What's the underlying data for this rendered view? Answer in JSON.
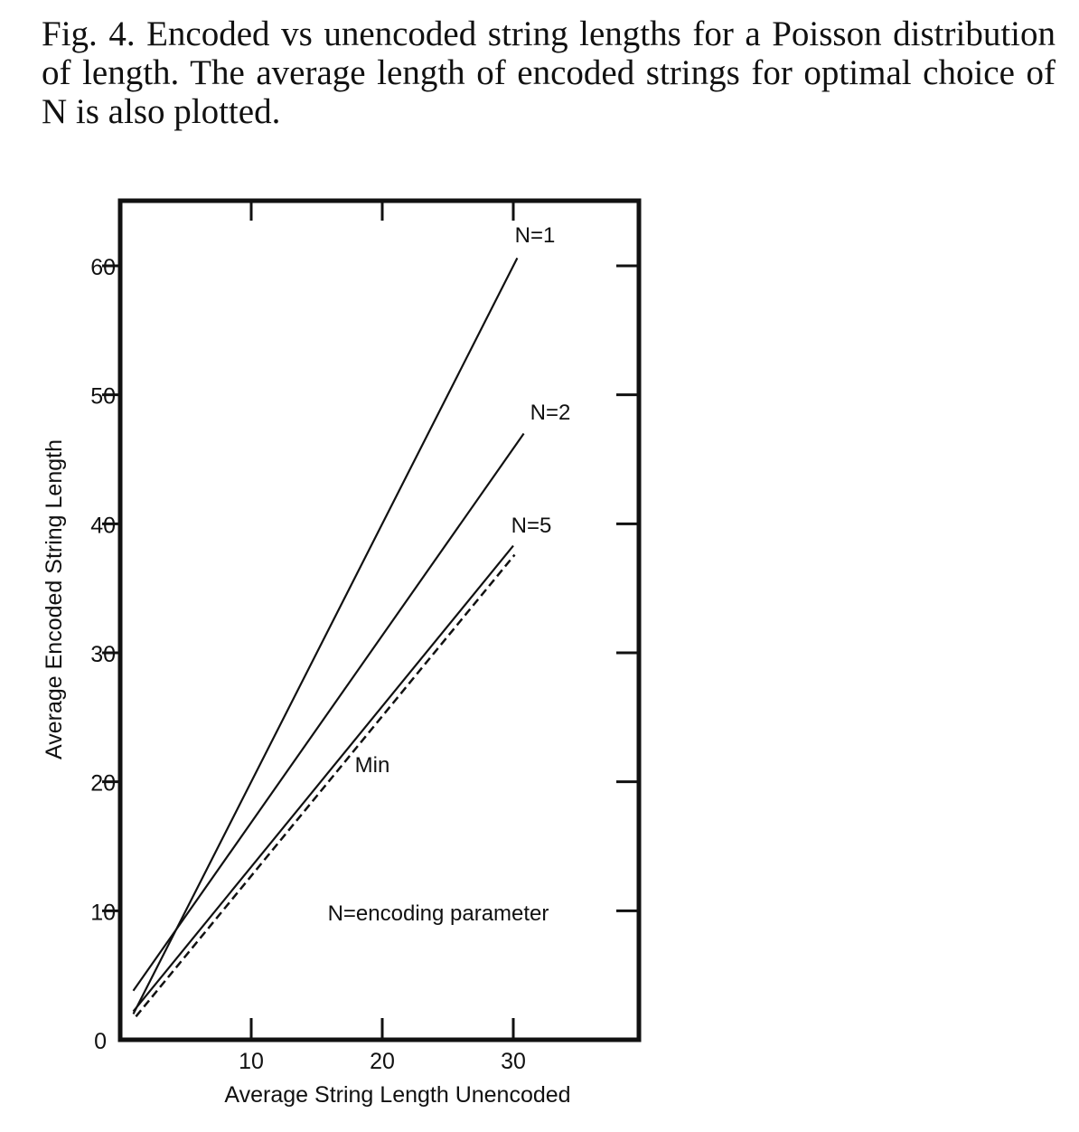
{
  "caption": {
    "text": "Fig. 4. Encoded vs unencoded string lengths for a Poisson distribution of length. The average length of encoded strings for optimal choice of N is also plotted."
  },
  "chart_data": {
    "type": "line",
    "xlabel": "Average String Length Unencoded",
    "ylabel": "Average Encoded String Length",
    "xlim": [
      0,
      40
    ],
    "ylim": [
      0,
      65
    ],
    "x_ticks": [
      10,
      20,
      30
    ],
    "y_ticks": [
      0,
      10,
      20,
      30,
      40,
      50,
      60
    ],
    "grid": false,
    "series": [
      {
        "name": "N=1",
        "style": "solid",
        "x": [
          1,
          30.3
        ],
        "y": [
          2,
          60.6
        ]
      },
      {
        "name": "N=2",
        "style": "solid",
        "x": [
          1,
          30.8
        ],
        "y": [
          3.8,
          47
        ]
      },
      {
        "name": "N=5",
        "style": "solid",
        "x": [
          1,
          30
        ],
        "y": [
          2.2,
          38.3
        ]
      },
      {
        "name": "Min",
        "style": "dashed",
        "x": [
          1.2,
          30.1
        ],
        "y": [
          1.8,
          37.6
        ]
      }
    ],
    "annotations": [
      {
        "text": "N=1"
      },
      {
        "text": "N=2"
      },
      {
        "text": "N=5"
      },
      {
        "text": "Min"
      },
      {
        "text": "N=encoding parameter"
      }
    ]
  }
}
